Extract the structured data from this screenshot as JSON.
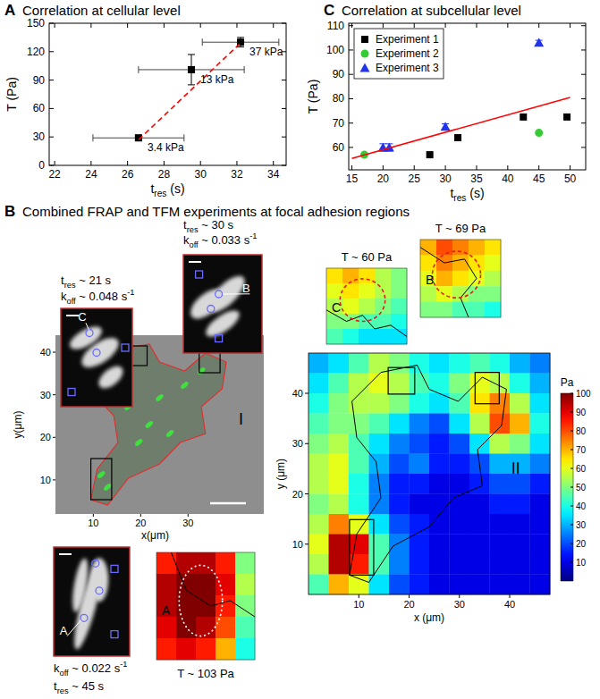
{
  "chart_data": [
    {
      "type": "scatter",
      "panel_label": "A",
      "title": "Correlation at cellular level",
      "x_label": [
        {
          "text": "t"
        },
        {
          "text": "res",
          "sub": true
        },
        {
          "text": " (s)"
        }
      ],
      "y_label": "T (Pa)",
      "xlim": [
        21.7,
        34.7
      ],
      "xticks": [
        22,
        24,
        26,
        28,
        30,
        32,
        34
      ],
      "ylim": [
        0,
        150
      ],
      "yticks": [
        0,
        30,
        60,
        90,
        120,
        150
      ],
      "grid": false,
      "series": [
        {
          "type": "scatter",
          "color": "#000000",
          "marker": "square",
          "x": [
            26.6,
            29.5,
            32.2
          ],
          "values": [
            29,
            101,
            130
          ],
          "x_errors": [
            2.5,
            2.9,
            2.1
          ],
          "errors": [
            3,
            16,
            5
          ],
          "point_labels": [
            "3.4 kPa",
            "13 kPa",
            "37 kPa"
          ]
        },
        {
          "type": "line",
          "color": "#ff0000",
          "line_style": "dashed",
          "x": [
            26.6,
            32.3
          ],
          "values": [
            27,
            131
          ]
        }
      ]
    },
    {
      "type": "scatter",
      "panel_label": "C",
      "title": "Correlation at subcellular level",
      "x_label": [
        {
          "text": "t"
        },
        {
          "text": "res",
          "sub": true
        },
        {
          "text": " (s)"
        }
      ],
      "y_label": "T (Pa)",
      "xlim": [
        14.5,
        52.5
      ],
      "xticks": [
        15,
        20,
        25,
        30,
        35,
        40,
        45,
        50
      ],
      "ylim": [
        50.8,
        111
      ],
      "yticks": [
        60,
        70,
        80,
        90,
        100,
        110
      ],
      "grid": false,
      "legend": "upper-left",
      "series": [
        {
          "name": "Experiment 1",
          "type": "scatter",
          "color": "#000000",
          "marker": "square",
          "x": [
            27.5,
            32,
            42.5,
            49.5
          ],
          "values": [
            57,
            64,
            72.5,
            72.5
          ]
        },
        {
          "name": "Experiment 2",
          "type": "scatter",
          "color": "#33cc33",
          "marker": "circle",
          "x": [
            17,
            45
          ],
          "values": [
            57,
            66
          ]
        },
        {
          "name": "Experiment 3",
          "type": "scatter",
          "color": "#2233ee",
          "marker": "triangle",
          "x": [
            20,
            21,
            30,
            45
          ],
          "values": [
            60,
            60,
            68.5,
            103
          ],
          "errors": [
            1.5,
            1.5,
            1.2,
            1
          ]
        },
        {
          "type": "line",
          "color": "#ff0000",
          "line_style": "solid",
          "x": [
            15,
            50
          ],
          "values": [
            55.5,
            80.5
          ]
        }
      ]
    },
    {
      "type": "heatmap",
      "label": "II",
      "x_label": "x (μm)",
      "y_label": "y (μm)",
      "xlim": [
        0,
        48
      ],
      "ylim": [
        0,
        48
      ],
      "xticks": [
        10,
        20,
        30,
        40
      ],
      "yticks": [
        10,
        20,
        30,
        40
      ],
      "cells": [
        [
          30,
          35,
          45,
          55,
          50,
          40,
          35,
          40,
          45,
          40,
          30,
          25
        ],
        [
          35,
          45,
          55,
          60,
          55,
          45,
          40,
          50,
          60,
          55,
          40,
          30
        ],
        [
          40,
          50,
          55,
          55,
          50,
          40,
          35,
          45,
          65,
          75,
          55,
          35
        ],
        [
          45,
          50,
          50,
          45,
          35,
          25,
          20,
          35,
          55,
          80,
          70,
          40
        ],
        [
          50,
          55,
          45,
          35,
          25,
          20,
          15,
          20,
          35,
          55,
          50,
          35
        ],
        [
          55,
          60,
          45,
          30,
          20,
          25,
          15,
          15,
          20,
          30,
          30,
          25
        ],
        [
          55,
          60,
          40,
          25,
          15,
          15,
          10,
          10,
          15,
          20,
          20,
          15
        ],
        [
          50,
          55,
          40,
          25,
          15,
          10,
          10,
          10,
          10,
          15,
          15,
          10
        ],
        [
          55,
          75,
          60,
          35,
          20,
          15,
          10,
          10,
          10,
          10,
          10,
          10
        ],
        [
          60,
          95,
          90,
          45,
          25,
          15,
          10,
          10,
          10,
          10,
          10,
          10
        ],
        [
          55,
          95,
          85,
          45,
          25,
          15,
          10,
          10,
          10,
          10,
          10,
          10
        ],
        [
          45,
          70,
          60,
          35,
          20,
          15,
          10,
          10,
          10,
          10,
          10,
          10
        ]
      ],
      "colorbar": {
        "label": "Pa",
        "range": [
          0,
          100
        ],
        "ticks": [
          10,
          20,
          30,
          40,
          50,
          60,
          70,
          80,
          90,
          100
        ]
      }
    },
    {
      "type": "heatmap",
      "label": "C",
      "title": "T ~ 60 Pa",
      "tick_labels": false,
      "cells": [
        [
          65,
          70,
          65,
          55,
          50
        ],
        [
          60,
          65,
          60,
          55,
          50
        ],
        [
          55,
          60,
          55,
          50,
          45
        ],
        [
          50,
          50,
          45,
          45,
          40
        ],
        [
          45,
          40,
          35,
          35,
          35
        ]
      ]
    },
    {
      "type": "heatmap",
      "label": "B",
      "title": "T ~ 69 Pa",
      "tick_labels": false,
      "cells": [
        [
          70,
          80,
          75,
          70,
          65
        ],
        [
          65,
          75,
          70,
          65,
          60
        ],
        [
          60,
          70,
          65,
          60,
          55
        ],
        [
          55,
          60,
          55,
          50,
          50
        ],
        [
          50,
          50,
          45,
          45,
          40
        ]
      ]
    },
    {
      "type": "heatmap",
      "label": "A",
      "title": "T ~ 103 Pa",
      "tick_labels": false,
      "cells": [
        [
          85,
          95,
          95,
          85,
          50
        ],
        [
          95,
          100,
          100,
          90,
          55
        ],
        [
          95,
          105,
          100,
          85,
          50
        ],
        [
          90,
          100,
          95,
          80,
          45
        ],
        [
          85,
          90,
          85,
          70,
          40
        ]
      ]
    }
  ],
  "figure": {
    "panel_label": "B",
    "title": "Combined FRAP and TFM experiments at focal adhesion regions",
    "image": {
      "label": "I",
      "x_label": "x(μm)",
      "y_label": "y(μm)",
      "xlim": [
        2,
        46
      ],
      "ylim": [
        2,
        44
      ],
      "xticks": [
        10,
        20,
        30
      ],
      "yticks": [
        10,
        20,
        30,
        40
      ]
    },
    "frap_insets": [
      {
        "label": "C",
        "annotations": [
          [
            {
              "text": "t"
            },
            {
              "text": "res",
              "sub": true
            },
            {
              "text": " ~ 21 s"
            }
          ],
          [
            {
              "text": "k"
            },
            {
              "text": "off",
              "sub": true
            },
            {
              "text": " ~ 0.048 s"
            },
            {
              "text": "-1",
              "sup": true
            }
          ]
        ]
      },
      {
        "label": "B",
        "annotations": [
          [
            {
              "text": "t"
            },
            {
              "text": "res",
              "sub": true
            },
            {
              "text": " ~ 30 s"
            }
          ],
          [
            {
              "text": "k"
            },
            {
              "text": "off",
              "sub": true
            },
            {
              "text": " ~ 0.033 s"
            },
            {
              "text": "-1",
              "sup": true
            }
          ]
        ]
      },
      {
        "label": "A",
        "annotations": [
          [
            {
              "text": "k"
            },
            {
              "text": "off",
              "sub": true
            },
            {
              "text": " ~ 0.022 s"
            },
            {
              "text": "-1",
              "sup": true
            }
          ],
          [
            {
              "text": "t"
            },
            {
              "text": "res",
              "sub": true
            },
            {
              "text": " ~ 45 s"
            }
          ]
        ]
      }
    ]
  }
}
